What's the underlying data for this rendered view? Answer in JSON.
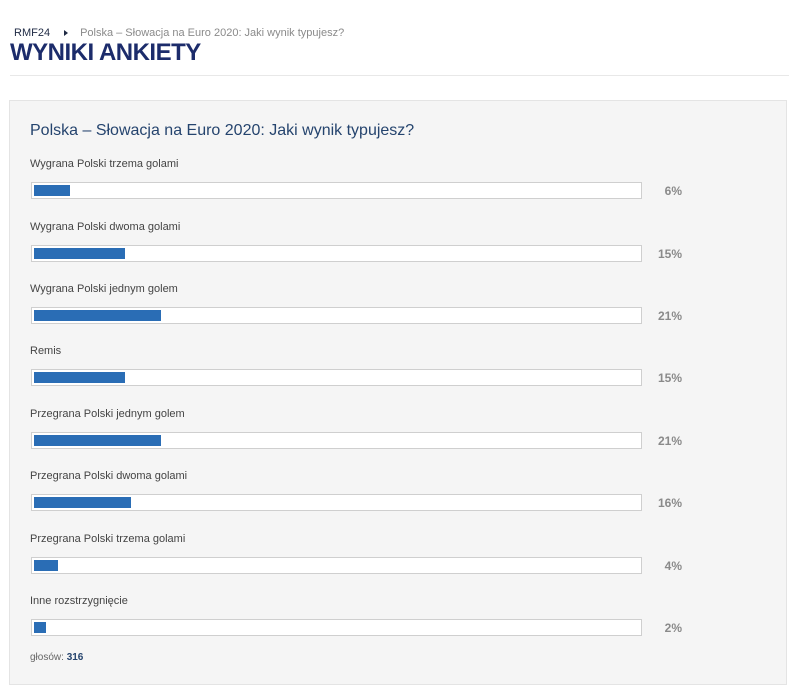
{
  "breadcrumb": {
    "home": "RMF24",
    "current": "Polska – Słowacja na Euro 2020: Jaki wynik typujesz?"
  },
  "page_title": "WYNIKI ANKIETY",
  "poll": {
    "question": "Polska – Słowacja na Euro 2020: Jaki wynik typujesz?",
    "bar_color": "#2a6db5",
    "options": [
      {
        "label": "Wygrana Polski trzema golami",
        "percent": 6,
        "percent_text": "6%"
      },
      {
        "label": "Wygrana Polski dwoma golami",
        "percent": 15,
        "percent_text": "15%"
      },
      {
        "label": "Wygrana Polski jednym golem",
        "percent": 21,
        "percent_text": "21%"
      },
      {
        "label": "Remis",
        "percent": 15,
        "percent_text": "15%"
      },
      {
        "label": "Przegrana Polski jednym golem",
        "percent": 21,
        "percent_text": "21%"
      },
      {
        "label": "Przegrana Polski dwoma golami",
        "percent": 16,
        "percent_text": "16%"
      },
      {
        "label": "Przegrana Polski trzema golami",
        "percent": 4,
        "percent_text": "4%"
      },
      {
        "label": "Inne rozstrzygnięcie",
        "percent": 2,
        "percent_text": "2%"
      }
    ],
    "votes_label": "głosów:",
    "votes_count": "316"
  }
}
